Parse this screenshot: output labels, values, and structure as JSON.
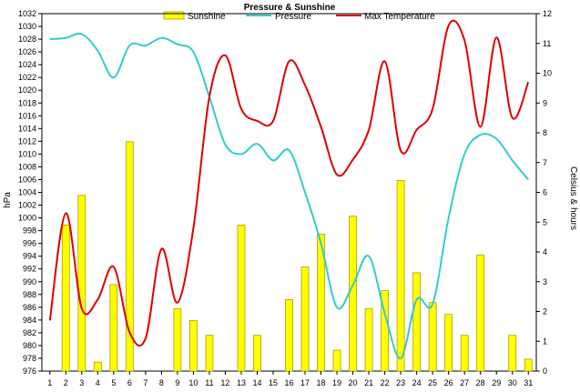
{
  "chart_data": {
    "type": "bar+line",
    "title": "Pressure & Sunshine",
    "ylabel_left": "hPa",
    "ylabel_right": "Celsius & hours",
    "ylim_left": [
      976,
      1032
    ],
    "ylim_right": [
      0,
      12
    ],
    "categories": [
      "1",
      "2",
      "3",
      "4",
      "5",
      "6",
      "7",
      "8",
      "9",
      "10",
      "11",
      "12",
      "13",
      "14",
      "15",
      "16",
      "17",
      "18",
      "19",
      "20",
      "21",
      "22",
      "23",
      "24",
      "25",
      "26",
      "27",
      "28",
      "29",
      "30",
      "31"
    ],
    "legend": [
      {
        "name": "Sunshine",
        "color": "#ffff00"
      },
      {
        "name": "Pressure",
        "color": "#33cccc"
      },
      {
        "name": "Max Temperature",
        "color": "#dd0000"
      }
    ],
    "series": [
      {
        "name": "Sunshine",
        "axis": "right",
        "kind": "bar",
        "color": "#ffff00",
        "edge": "#b59a00",
        "values": [
          0,
          4.9,
          5.9,
          0.3,
          2.9,
          7.7,
          0,
          0,
          2.1,
          1.7,
          1.2,
          0,
          4.9,
          1.2,
          0,
          2.4,
          3.5,
          4.6,
          0.7,
          5.2,
          2.1,
          2.7,
          6.4,
          3.3,
          2.3,
          1.9,
          1.2,
          3.9,
          0,
          1.2,
          0.4
        ]
      },
      {
        "name": "Pressure",
        "axis": "left",
        "kind": "line",
        "color": "#33cccc",
        "values": [
          1028,
          1028.2,
          1028.8,
          1026.2,
          1022,
          1027,
          1027,
          1028.2,
          1027.2,
          1026,
          1019,
          1011.5,
          1010,
          1011.6,
          1009,
          1010.6,
          1004,
          996,
          986,
          989.5,
          994,
          985,
          978,
          987.2,
          986.5,
          1000,
          1010,
          1013,
          1012.4,
          1009,
          1006
        ]
      },
      {
        "name": "Max Temperature",
        "axis": "right",
        "kind": "line",
        "color": "#dd0000",
        "values": [
          1.7,
          5.3,
          2.1,
          2.4,
          3.5,
          1.3,
          1.1,
          4.1,
          2.3,
          4.8,
          9.2,
          10.6,
          8.8,
          8.4,
          8.4,
          10.4,
          9.6,
          8.2,
          6.6,
          7.1,
          8.1,
          10.4,
          7.4,
          8.1,
          8.8,
          11.6,
          11.1,
          8.2,
          11.2,
          8.5,
          9.7
        ]
      }
    ]
  }
}
